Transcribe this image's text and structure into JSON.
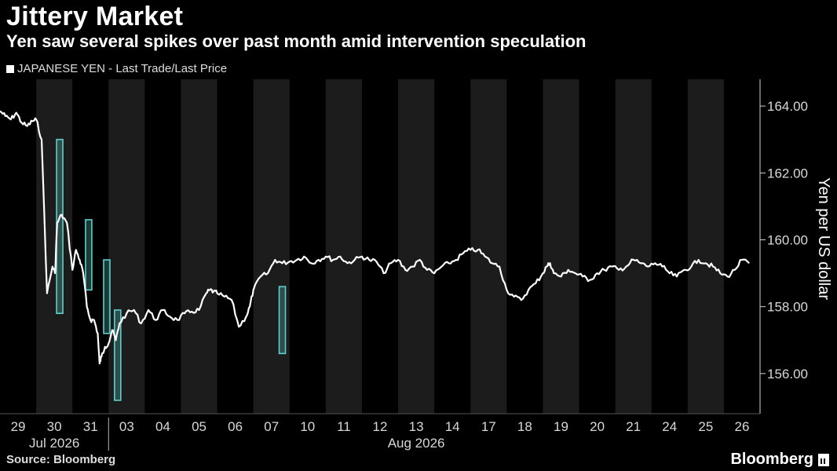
{
  "header": {
    "title": "Jittery Market",
    "subtitle": "Yen saw several spikes over past month amid intervention speculation"
  },
  "legend": {
    "label": "JAPANESE YEN - Last Trade/Last Price",
    "color": "#ffffff"
  },
  "footer": {
    "source": "Source: Bloomberg",
    "brand": "Bloomberg"
  },
  "chart_data": {
    "type": "line",
    "title": "Jittery Market",
    "ylabel": "Yen per US dollar",
    "ylim": [
      154.8,
      164.8
    ],
    "yticks": [
      156.0,
      158.0,
      160.0,
      162.0,
      164.0
    ],
    "ytick_labels": [
      "156.00",
      "158.00",
      "160.00",
      "162.00",
      "164.00"
    ],
    "x_day_labels": [
      "29",
      "30",
      "31",
      "03",
      "04",
      "05",
      "06",
      "07",
      "10",
      "11",
      "12",
      "13",
      "14",
      "17",
      "18",
      "19",
      "20",
      "21",
      "24",
      "25",
      "26"
    ],
    "x_month_labels": [
      {
        "label": "Jul 2026",
        "day_index": 1
      },
      {
        "label": "Aug 2026",
        "day_index": 11
      }
    ],
    "alternate_day_shading": true,
    "colors": {
      "line": "#ffffff",
      "highlight": "#5ecfca",
      "shade": "#1c1c1c"
    },
    "series": [
      {
        "x": [
          0.0,
          0.15,
          0.3,
          0.45,
          0.6,
          0.75,
          0.9,
          1.0,
          1.15,
          1.3,
          1.45,
          1.52,
          1.58,
          1.7,
          1.85,
          2.0,
          2.1,
          2.2,
          2.3,
          2.4,
          2.5,
          2.6,
          2.7,
          2.75,
          2.8,
          2.9,
          3.0,
          3.1,
          3.2,
          3.3,
          3.5,
          3.7,
          3.9,
          4.1,
          4.3,
          4.5,
          4.7,
          4.9,
          5.1,
          5.3,
          5.5,
          5.7,
          5.8,
          5.9,
          6.0,
          6.2,
          6.4,
          6.6,
          6.8,
          6.9,
          7.0,
          7.2,
          7.4,
          7.6,
          7.8,
          8.0,
          8.2,
          8.4,
          8.6,
          8.8,
          9.0,
          9.2,
          9.4,
          9.6,
          9.8,
          10.0,
          10.2,
          10.4,
          10.6,
          10.8,
          11.0,
          11.2,
          11.4,
          11.6,
          11.8,
          12.0,
          12.2,
          12.4,
          12.6,
          12.8,
          13.0,
          13.2,
          13.4,
          13.6,
          13.8,
          14.0,
          14.2,
          14.4,
          14.6,
          14.8,
          15.0,
          15.1,
          15.2,
          15.3,
          15.5,
          15.7,
          15.9,
          16.1,
          16.3,
          16.5,
          16.7,
          16.9,
          17.1,
          17.3,
          17.5,
          17.7,
          17.9,
          18.1,
          18.3,
          18.5,
          18.7,
          18.9,
          19.1,
          19.3,
          19.5,
          19.7,
          19.9,
          20.1,
          20.3,
          20.5,
          20.7
        ],
        "y": [
          163.85,
          163.7,
          163.6,
          163.8,
          163.5,
          163.4,
          163.55,
          163.6,
          163.0,
          158.4,
          159.2,
          159.0,
          160.5,
          160.75,
          160.5,
          159.1,
          159.7,
          159.4,
          159.0,
          158.0,
          157.6,
          157.6,
          157.2,
          156.3,
          156.5,
          156.8,
          156.9,
          157.3,
          157.0,
          157.5,
          157.8,
          157.9,
          157.5,
          157.9,
          157.6,
          157.9,
          157.7,
          157.6,
          157.8,
          157.85,
          157.9,
          158.4,
          158.5,
          158.45,
          158.4,
          158.3,
          158.2,
          157.4,
          157.7,
          158.0,
          158.5,
          158.9,
          159.0,
          159.4,
          159.3,
          159.35,
          159.4,
          159.5,
          159.3,
          159.4,
          159.5,
          159.4,
          159.5,
          159.3,
          159.4,
          159.5,
          159.4,
          159.35,
          159.0,
          159.3,
          159.4,
          159.1,
          159.2,
          159.4,
          159.1,
          159.0,
          159.2,
          159.3,
          159.4,
          159.6,
          159.7,
          159.7,
          159.5,
          159.3,
          159.2,
          158.5,
          158.3,
          158.2,
          158.5,
          158.7,
          159.0,
          159.2,
          159.3,
          159.0,
          158.9,
          159.1,
          159.0,
          158.9,
          158.8,
          159.0,
          159.1,
          159.2,
          159.1,
          159.2,
          159.4,
          159.3,
          159.2,
          159.3,
          159.2,
          159.0,
          158.9,
          159.1,
          159.2,
          159.4,
          159.3,
          159.2,
          159.0,
          158.9,
          159.1,
          159.4,
          159.3
        ]
      }
    ],
    "intervention_spikes": [
      {
        "x": 1.65,
        "open": 163.0,
        "close": 157.8
      },
      {
        "x": 2.45,
        "open": 160.6,
        "close": 158.5
      },
      {
        "x": 2.95,
        "open": 159.4,
        "close": 157.2
      },
      {
        "x": 3.25,
        "open": 157.9,
        "close": 155.2
      },
      {
        "x": 7.8,
        "open": 158.6,
        "close": 156.6
      }
    ]
  }
}
